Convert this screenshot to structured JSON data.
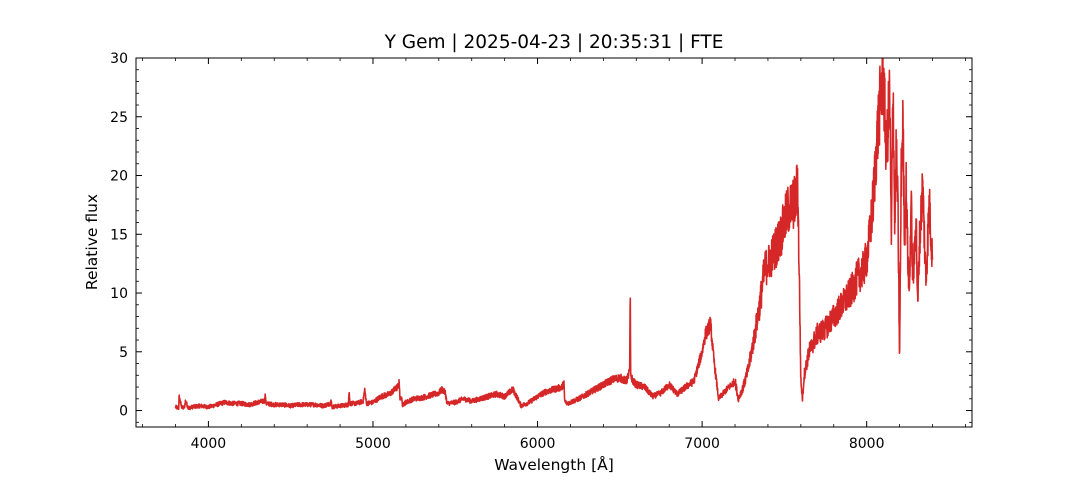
{
  "chart_data": {
    "type": "line",
    "title": "Y Gem | 2025-04-23 | 20:35:31 | FTE",
    "xlabel": "Wavelength [Å]",
    "ylabel": "Relative flux",
    "xlim": [
      3560,
      8640
    ],
    "ylim": [
      -1.4,
      30
    ],
    "xticks": [
      4000,
      5000,
      6000,
      7000,
      8000
    ],
    "xtick_labels": [
      "4000",
      "5000",
      "6000",
      "7000",
      "8000"
    ],
    "yticks": [
      0,
      5,
      10,
      15,
      20,
      25,
      30
    ],
    "ytick_labels": [
      "0",
      "5",
      "10",
      "15",
      "20",
      "25",
      "30"
    ],
    "grid": false,
    "series_color": "#d62728",
    "series": [
      {
        "x": [
          3800,
          3820,
          3822,
          3835,
          3845,
          3855,
          3860,
          3880,
          3900,
          3950,
          4000,
          4050,
          4100,
          4150,
          4200,
          4250,
          4300,
          4340,
          4345,
          4350,
          4400,
          4450,
          4500,
          4550,
          4600,
          4650,
          4700,
          4740,
          4745,
          4750,
          4800,
          4850,
          4855,
          4860,
          4900,
          4940,
          4950,
          4960,
          5000,
          5050,
          5100,
          5150,
          5160,
          5165,
          5170,
          5180,
          5200,
          5250,
          5300,
          5350,
          5400,
          5420,
          5440,
          5450,
          5500,
          5550,
          5600,
          5650,
          5700,
          5750,
          5800,
          5850,
          5880,
          5900,
          5950,
          6000,
          6050,
          6100,
          6150,
          6160,
          6165,
          6180,
          6200,
          6250,
          6300,
          6350,
          6400,
          6450,
          6500,
          6540,
          6560,
          6563,
          6566,
          6580,
          6600,
          6650,
          6700,
          6750,
          6800,
          6850,
          6900,
          6950,
          6980,
          7000,
          7020,
          7040,
          7050,
          7060,
          7070,
          7100,
          7150,
          7200,
          7220,
          7250,
          7280,
          7300,
          7320,
          7350,
          7380,
          7400,
          7420,
          7450,
          7480,
          7500,
          7520,
          7550,
          7570,
          7580,
          7590,
          7600,
          7610,
          7620,
          7650,
          7700,
          7750,
          7800,
          7850,
          7900,
          7950,
          7980,
          8000,
          8020,
          8040,
          8060,
          8080,
          8100,
          8120,
          8140,
          8150,
          8160,
          8170,
          8180,
          8190,
          8200,
          8210,
          8220,
          8230,
          8240,
          8250,
          8260,
          8270,
          8280,
          8290,
          8300,
          8310,
          8320,
          8340,
          8360,
          8380,
          8400
        ],
        "y": [
          0.3,
          0.2,
          1.2,
          0.4,
          0.2,
          0.3,
          0.8,
          0.2,
          0.3,
          0.4,
          0.3,
          0.5,
          0.7,
          0.6,
          0.6,
          0.5,
          0.7,
          0.8,
          1.3,
          0.6,
          0.5,
          0.5,
          0.4,
          0.5,
          0.5,
          0.5,
          0.4,
          0.6,
          0.9,
          0.3,
          0.4,
          0.5,
          1.6,
          0.6,
          0.6,
          0.8,
          1.8,
          0.6,
          0.7,
          1.2,
          1.4,
          2.0,
          2.4,
          0.8,
          1.2,
          0.5,
          0.7,
          1.0,
          1.1,
          1.3,
          1.5,
          1.8,
          1.5,
          0.6,
          0.7,
          1.0,
          0.8,
          1.0,
          1.2,
          1.4,
          1.2,
          1.8,
          1.0,
          0.4,
          0.7,
          1.2,
          1.6,
          1.8,
          2.0,
          2.4,
          0.8,
          0.6,
          0.7,
          1.0,
          1.4,
          1.8,
          2.2,
          2.6,
          2.8,
          2.5,
          3.4,
          10.3,
          3.0,
          2.5,
          2.2,
          2.0,
          1.2,
          1.5,
          2.2,
          1.4,
          2.0,
          2.5,
          4.0,
          5.0,
          6.5,
          7.0,
          7.5,
          6.0,
          4.5,
          1.0,
          1.8,
          2.5,
          1.0,
          2.0,
          3.5,
          5.0,
          6.5,
          9.0,
          12.0,
          12.5,
          13.0,
          14.0,
          15.0,
          16.0,
          17.0,
          17.5,
          18.0,
          19.5,
          12.0,
          2.5,
          1.0,
          3.0,
          5.0,
          6.5,
          7.0,
          8.0,
          9.0,
          10.0,
          11.5,
          12.0,
          13.0,
          15.0,
          18.0,
          22.5,
          26.0,
          28.5,
          22.0,
          27.0,
          14.0,
          28.5,
          16.0,
          22.0,
          17.0,
          4.3,
          20.0,
          24.5,
          15.0,
          19.0,
          13.0,
          10.0,
          18.0,
          11.0,
          13.0,
          17.0,
          8.5,
          14.0,
          19.2,
          11.0,
          17.5,
          13.0
        ]
      }
    ]
  }
}
